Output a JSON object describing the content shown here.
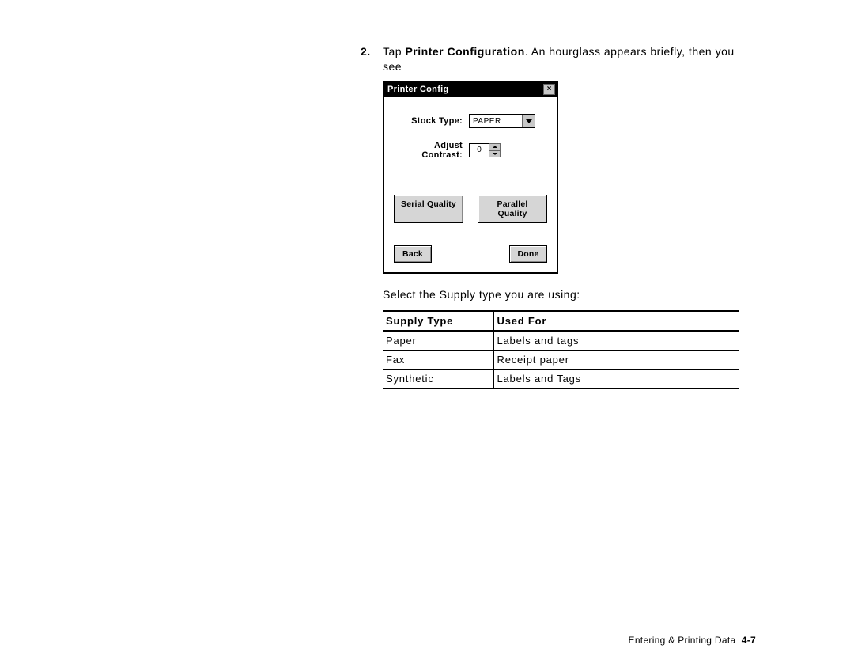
{
  "step": {
    "number": "2.",
    "prefix": "Tap ",
    "bold": "Printer Configuration",
    "suffix": ".  An hourglass appears briefly, then you",
    "line2": "see"
  },
  "dialog": {
    "title": "Printer Config",
    "close": "×",
    "stockTypeLabel": "Stock Type:",
    "stockTypeValue": "PAPER",
    "contrastLabel": "Adjust Contrast:",
    "contrastValue": "0",
    "serialBtn": "Serial Quality",
    "parallelBtn": "Parallel Quality",
    "backBtn": "Back",
    "doneBtn": "Done"
  },
  "selectLine": "Select the Supply type you are using:",
  "table": {
    "headers": {
      "c1": "Supply Type",
      "c2": "Used For"
    },
    "rows": [
      {
        "c1": "Paper",
        "c2": "Labels and tags"
      },
      {
        "c1": "Fax",
        "c2": "Receipt paper"
      },
      {
        "c1": "Synthetic",
        "c2": "Labels and Tags"
      }
    ]
  },
  "footer": {
    "text": "Entering & Printing Data",
    "page": "4-7"
  }
}
